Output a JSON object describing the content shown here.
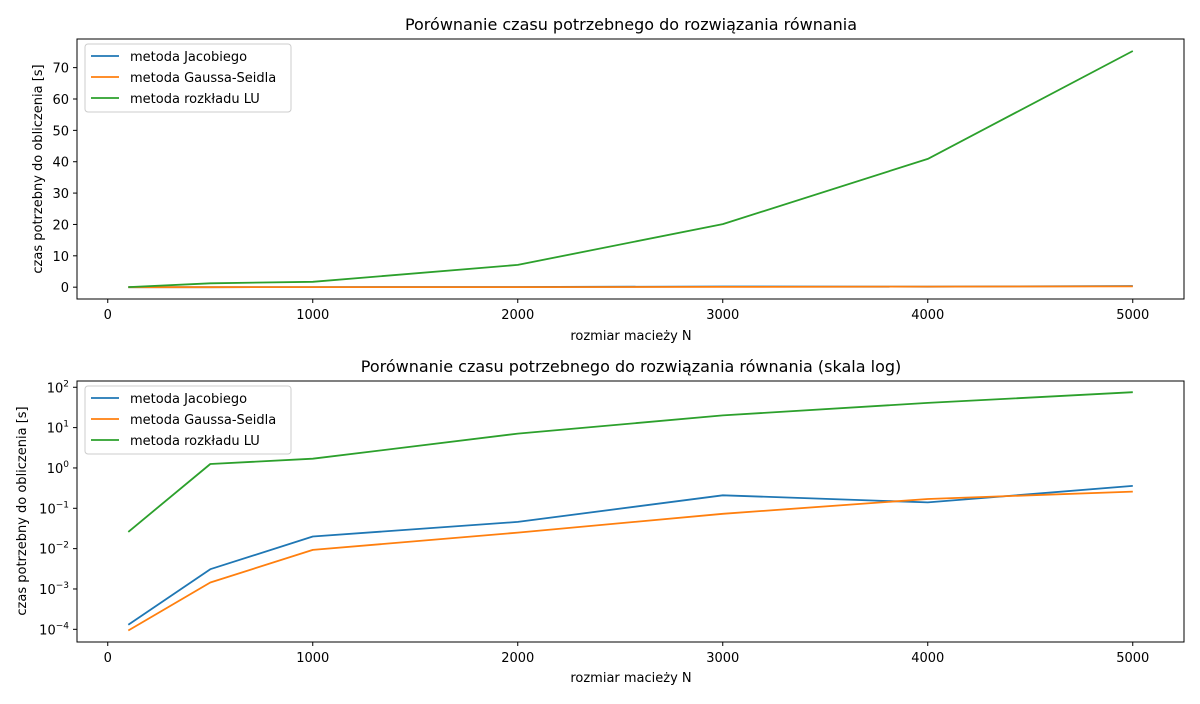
{
  "colors": {
    "jacobi": "#1f77b4",
    "gauss_seidel": "#ff7f0e",
    "lu": "#2ca02c",
    "legend_frame": "#cccccc",
    "axes": "#000000"
  },
  "chart_data": [
    {
      "type": "line",
      "title": "Porównanie czasu potrzebnego do rozwiązania równania",
      "xlabel": "rozmiar macieży N",
      "ylabel": "czas potrzebny do obliczenia [s]",
      "xlim": [
        -150,
        5250
      ],
      "ylim": [
        -3.77,
        79.13
      ],
      "yscale": "linear",
      "xticks": [
        0,
        1000,
        2000,
        3000,
        4000,
        5000
      ],
      "xtick_labels": [
        "0",
        "1000",
        "2000",
        "3000",
        "4000",
        "5000"
      ],
      "yticks": [
        0,
        10,
        20,
        30,
        40,
        50,
        60,
        70
      ],
      "ytick_labels": [
        "0",
        "10",
        "20",
        "30",
        "40",
        "50",
        "60",
        "70"
      ],
      "grid": false,
      "legend_position": "upper-left",
      "x": [
        100,
        500,
        1000,
        2000,
        3000,
        4000,
        5000
      ],
      "series": [
        {
          "name": "metoda Jacobiego",
          "color_key": "jacobi",
          "values": [
            0.00013,
            0.0031,
            0.02,
            0.046,
            0.21,
            0.14,
            0.36
          ]
        },
        {
          "name": "metoda Gaussa-Seidla",
          "color_key": "gauss_seidel",
          "values": [
            9.37e-05,
            0.00145,
            0.0093,
            0.025,
            0.073,
            0.17,
            0.26
          ]
        },
        {
          "name": "metoda rozkładu LU",
          "color_key": "lu",
          "values": [
            0.026,
            1.25,
            1.7,
            7.1,
            20.1,
            40.9,
            75.3
          ]
        }
      ]
    },
    {
      "type": "line",
      "title": "Porównanie czasu potrzebnego do rozwiązania równania (skala log)",
      "xlabel": "rozmiar macieży N",
      "ylabel": "czas potrzebny do obliczenia [s]",
      "xlim": [
        -150,
        5250
      ],
      "ylim": [
        4.85e-05,
        143
      ],
      "yscale": "log",
      "xticks": [
        0,
        1000,
        2000,
        3000,
        4000,
        5000
      ],
      "xtick_labels": [
        "0",
        "1000",
        "2000",
        "3000",
        "4000",
        "5000"
      ],
      "yticks": [
        0.0001,
        0.001,
        0.01,
        0.1,
        1,
        10,
        100
      ],
      "ytick_labels": [
        {
          "base": "10",
          "exp": "−4"
        },
        {
          "base": "10",
          "exp": "−3"
        },
        {
          "base": "10",
          "exp": "−2"
        },
        {
          "base": "10",
          "exp": "−1"
        },
        {
          "base": "10",
          "exp": "0"
        },
        {
          "base": "10",
          "exp": "1"
        },
        {
          "base": "10",
          "exp": "2"
        }
      ],
      "grid": false,
      "legend_position": "upper-left",
      "x": [
        100,
        500,
        1000,
        2000,
        3000,
        4000,
        5000
      ],
      "series": [
        {
          "name": "metoda Jacobiego",
          "color_key": "jacobi",
          "values": [
            0.00013,
            0.0031,
            0.02,
            0.046,
            0.21,
            0.14,
            0.36
          ]
        },
        {
          "name": "metoda Gaussa-Seidla",
          "color_key": "gauss_seidel",
          "values": [
            9.37e-05,
            0.00145,
            0.0093,
            0.025,
            0.073,
            0.17,
            0.26
          ]
        },
        {
          "name": "metoda rozkładu LU",
          "color_key": "lu",
          "values": [
            0.026,
            1.25,
            1.7,
            7.1,
            20.1,
            40.9,
            75.3
          ]
        }
      ]
    }
  ]
}
